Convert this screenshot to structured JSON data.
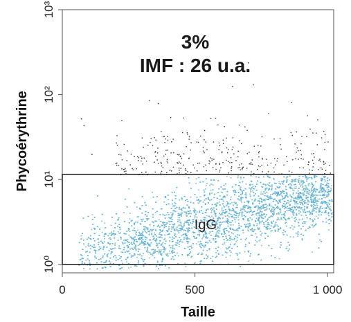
{
  "chart_data": {
    "type": "scatter",
    "title": "",
    "xlabel": "Taille",
    "ylabel": "Phycoérythrine",
    "xlim": [
      0,
      1023
    ],
    "ylim_log10": [
      -0.1,
      3.0
    ],
    "y_scale": "log",
    "grid": false,
    "x_ticks": [
      {
        "value": 0,
        "label": "0"
      },
      {
        "value": 500,
        "label": "500"
      },
      {
        "value": 1000,
        "label": "1 000"
      }
    ],
    "y_ticks": [
      {
        "value": 1,
        "label": "10⁰"
      },
      {
        "value": 10,
        "label": "10¹"
      },
      {
        "value": 100,
        "label": "10²"
      },
      {
        "value": 1000,
        "label": "10³"
      }
    ],
    "annotations": {
      "percent": "3%",
      "imf": "IMF : 26 u.a."
    },
    "gate": {
      "label": "IgG",
      "x_range": [
        0,
        1023
      ],
      "y_range": [
        1,
        11.5
      ]
    },
    "gated_population_color": "#5fb0d8",
    "ungated_point_color": "#333333"
  }
}
